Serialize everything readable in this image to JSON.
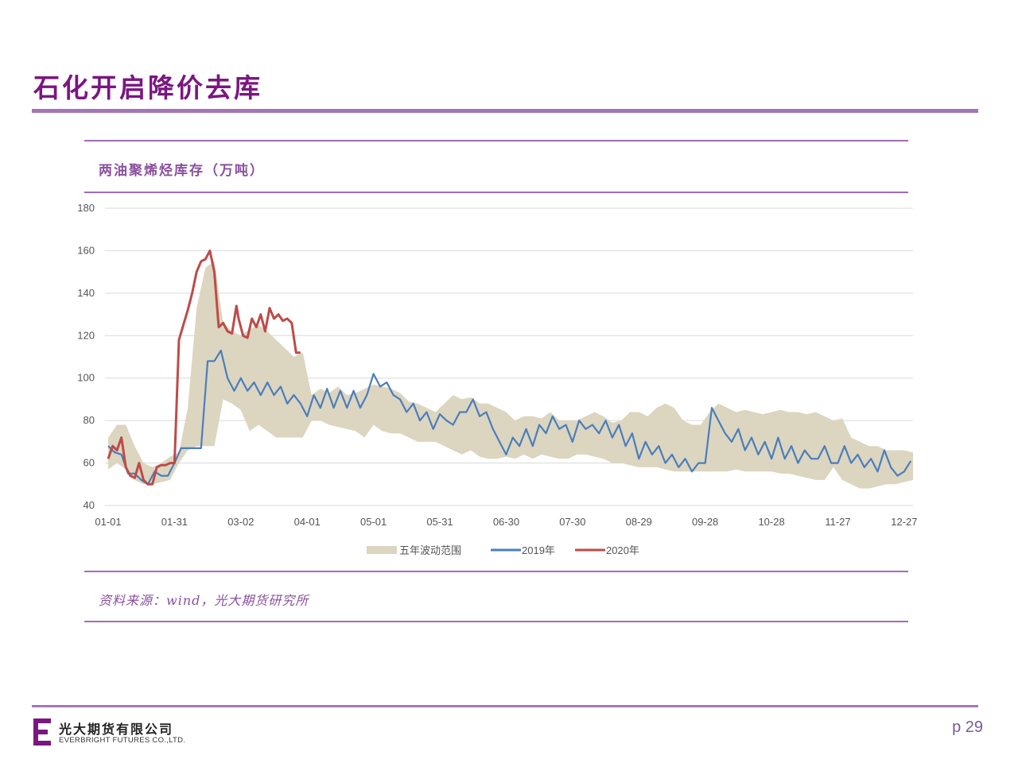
{
  "slide": {
    "title": "石化开启降价去库",
    "page_number": "p 29"
  },
  "source_note": "资料来源：wind，光大期货研究所",
  "company": {
    "name_cn": "光大期货有限公司",
    "name_en": "EVERBRIGHT FUTURES CO.,LTD."
  },
  "colors": {
    "band": "#dcd5c0",
    "series_2019": "#4a7ebb",
    "series_2020": "#be4b48",
    "accent": "#a06cb8",
    "title": "#7b1680"
  },
  "chart_data": {
    "type": "line",
    "title": "两油聚烯烃库存（万吨）",
    "xlabel": "",
    "ylabel": "",
    "ylim": [
      40,
      180
    ],
    "yticks": [
      "180",
      "160",
      "140",
      "120",
      "100",
      "80",
      "60",
      "40"
    ],
    "x_range": [
      "01-01",
      "12-31"
    ],
    "xticks": [
      "01-01",
      "01-31",
      "03-02",
      "04-01",
      "05-01",
      "05-31",
      "06-30",
      "07-30",
      "08-29",
      "09-28",
      "10-28",
      "11-27",
      "12-27"
    ],
    "grid": true,
    "legend": {
      "position": "bottom",
      "entries": [
        "五年波动范围",
        "2019年",
        "2020年"
      ]
    },
    "band": {
      "name": "五年波动范围",
      "x": [
        "01-01",
        "01-05",
        "01-09",
        "01-13",
        "01-17",
        "01-21",
        "01-25",
        "01-29",
        "02-02",
        "02-06",
        "02-10",
        "02-14",
        "02-18",
        "02-22",
        "02-26",
        "03-02",
        "03-06",
        "03-10",
        "03-14",
        "03-18",
        "03-22",
        "03-26",
        "03-30",
        "04-03",
        "04-07",
        "04-11",
        "04-15",
        "04-19",
        "04-23",
        "04-27",
        "05-01",
        "05-05",
        "05-09",
        "05-13",
        "05-17",
        "05-21",
        "05-25",
        "05-29",
        "06-02",
        "06-06",
        "06-10",
        "06-14",
        "06-18",
        "06-22",
        "06-26",
        "06-30",
        "07-04",
        "07-08",
        "07-12",
        "07-16",
        "07-20",
        "07-24",
        "07-28",
        "08-01",
        "08-05",
        "08-09",
        "08-13",
        "08-17",
        "08-21",
        "08-25",
        "08-29",
        "09-02",
        "09-06",
        "09-10",
        "09-14",
        "09-18",
        "09-22",
        "09-26",
        "09-30",
        "10-04",
        "10-08",
        "10-12",
        "10-16",
        "10-20",
        "10-24",
        "10-28",
        "11-01",
        "11-05",
        "11-09",
        "11-13",
        "11-17",
        "11-21",
        "11-25",
        "11-29",
        "12-03",
        "12-07",
        "12-11",
        "12-15",
        "12-19",
        "12-23",
        "12-27",
        "12-31"
      ],
      "low": [
        57,
        60,
        57,
        52,
        50,
        50,
        51,
        52,
        60,
        66,
        68,
        68,
        68,
        90,
        88,
        85,
        75,
        78,
        75,
        72,
        72,
        72,
        72,
        80,
        80,
        78,
        77,
        76,
        75,
        72,
        78,
        75,
        74,
        74,
        72,
        70,
        70,
        70,
        68,
        66,
        64,
        66,
        63,
        62,
        62,
        63,
        62,
        64,
        62,
        64,
        63,
        62,
        62,
        64,
        64,
        63,
        62,
        60,
        60,
        59,
        58,
        58,
        58,
        57,
        56,
        56,
        56,
        56,
        56,
        56,
        56,
        57,
        56,
        56,
        56,
        56,
        55,
        55,
        54,
        53,
        52,
        52,
        58,
        52,
        50,
        48,
        48,
        49,
        50,
        50,
        51,
        52
      ],
      "high": [
        72,
        78,
        78,
        68,
        60,
        58,
        60,
        63,
        65,
        86,
        133,
        152,
        155,
        126,
        122,
        120,
        123,
        125,
        122,
        118,
        114,
        110,
        112,
        92,
        95,
        93,
        96,
        92,
        93,
        95,
        97,
        96,
        95,
        93,
        89,
        88,
        86,
        84,
        88,
        92,
        90,
        91,
        88,
        88,
        86,
        84,
        80,
        82,
        82,
        81,
        84,
        80,
        80,
        80,
        82,
        84,
        82,
        79,
        80,
        84,
        84,
        82,
        86,
        88,
        86,
        80,
        78,
        78,
        84,
        88,
        86,
        84,
        85,
        84,
        83,
        84,
        85,
        84,
        84,
        83,
        84,
        82,
        80,
        81,
        72,
        70,
        68,
        68,
        66,
        66,
        66,
        65
      ]
    },
    "series": [
      {
        "name": "2019年",
        "x": [
          "01-01",
          "01-04",
          "01-07",
          "01-10",
          "01-13",
          "01-16",
          "01-19",
          "01-22",
          "01-25",
          "01-28",
          "01-31",
          "02-03",
          "02-06",
          "02-09",
          "02-12",
          "02-15",
          "02-18",
          "02-21",
          "02-24",
          "02-27",
          "03-02",
          "03-05",
          "03-08",
          "03-11",
          "03-14",
          "03-17",
          "03-20",
          "03-23",
          "03-26",
          "03-29",
          "04-01",
          "04-04",
          "04-07",
          "04-10",
          "04-13",
          "04-16",
          "04-19",
          "04-22",
          "04-25",
          "04-28",
          "05-01",
          "05-04",
          "05-07",
          "05-10",
          "05-13",
          "05-16",
          "05-19",
          "05-22",
          "05-25",
          "05-28",
          "05-31",
          "06-03",
          "06-06",
          "06-09",
          "06-12",
          "06-15",
          "06-18",
          "06-21",
          "06-24",
          "06-27",
          "06-30",
          "07-03",
          "07-06",
          "07-09",
          "07-12",
          "07-15",
          "07-18",
          "07-21",
          "07-24",
          "07-27",
          "07-30",
          "08-02",
          "08-05",
          "08-08",
          "08-11",
          "08-14",
          "08-17",
          "08-20",
          "08-23",
          "08-26",
          "08-29",
          "09-01",
          "09-04",
          "09-07",
          "09-10",
          "09-13",
          "09-16",
          "09-19",
          "09-22",
          "09-25",
          "09-28",
          "10-01",
          "10-04",
          "10-07",
          "10-10",
          "10-13",
          "10-16",
          "10-19",
          "10-22",
          "10-25",
          "10-28",
          "10-31",
          "11-03",
          "11-06",
          "11-09",
          "11-12",
          "11-15",
          "11-18",
          "11-21",
          "11-24",
          "11-27",
          "11-30",
          "12-03",
          "12-06",
          "12-09",
          "12-12",
          "12-15",
          "12-18",
          "12-21",
          "12-24",
          "12-27",
          "12-30"
        ],
        "values": [
          68,
          65,
          64,
          55,
          55,
          52,
          50,
          56,
          54,
          54,
          60,
          67,
          67,
          67,
          67,
          108,
          108,
          113,
          100,
          94,
          100,
          94,
          98,
          92,
          98,
          92,
          96,
          88,
          92,
          88,
          82,
          92,
          86,
          95,
          86,
          94,
          86,
          94,
          86,
          92,
          102,
          96,
          98,
          92,
          90,
          84,
          88,
          80,
          84,
          76,
          83,
          80,
          78,
          84,
          84,
          90,
          82,
          84,
          76,
          70,
          64,
          72,
          68,
          76,
          68,
          78,
          74,
          82,
          76,
          78,
          70,
          80,
          76,
          78,
          74,
          80,
          72,
          78,
          68,
          74,
          62,
          70,
          64,
          68,
          60,
          64,
          58,
          62,
          56,
          60,
          60,
          86,
          80,
          74,
          70,
          76,
          66,
          72,
          64,
          70,
          62,
          72,
          62,
          68,
          60,
          66,
          62,
          62,
          68,
          60,
          60,
          68,
          60,
          64,
          58,
          62,
          56,
          66,
          58,
          54,
          56,
          61
        ]
      },
      {
        "name": "2020年",
        "x": [
          "01-01",
          "01-03",
          "01-05",
          "01-07",
          "01-09",
          "01-11",
          "01-13",
          "01-15",
          "01-17",
          "01-19",
          "01-21",
          "01-23",
          "01-25",
          "01-27",
          "01-29",
          "01-31",
          "02-02",
          "02-04",
          "02-06",
          "02-08",
          "02-10",
          "02-12",
          "02-14",
          "02-16",
          "02-18",
          "02-20",
          "02-22",
          "02-24",
          "02-26",
          "02-28",
          "03-01",
          "03-03",
          "03-05",
          "03-07",
          "03-09",
          "03-11",
          "03-13",
          "03-15",
          "03-17",
          "03-19",
          "03-21",
          "03-23",
          "03-25",
          "03-27",
          "03-29"
        ],
        "values": [
          62,
          68,
          66,
          72,
          58,
          54,
          53,
          60,
          52,
          50,
          50,
          58,
          59,
          59,
          60,
          60,
          118,
          125,
          132,
          140,
          150,
          155,
          156,
          160,
          150,
          124,
          126,
          122,
          121,
          134,
          128,
          120,
          119,
          128,
          124,
          130,
          122,
          133,
          128,
          130,
          127,
          128,
          126,
          112,
          112
        ]
      }
    ]
  }
}
